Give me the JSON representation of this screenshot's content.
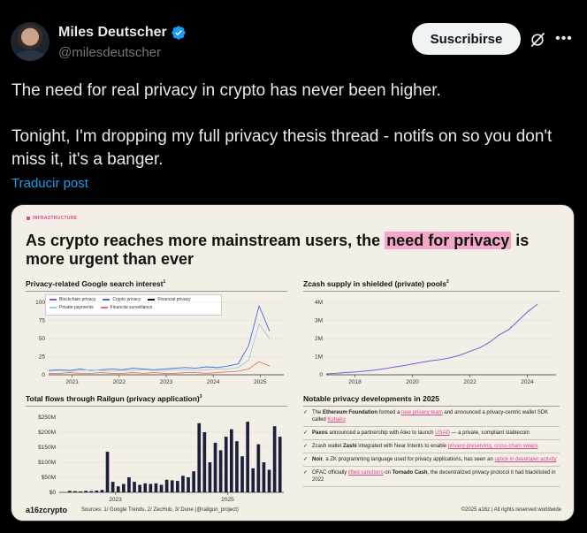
{
  "header": {
    "name": "Miles Deutscher",
    "handle": "@milesdeutscher",
    "subscribe_label": "Suscribirse"
  },
  "tweet": {
    "text": "The need for real privacy in crypto has never been higher.\n\nTonight, I'm dropping my full privacy thesis thread - notifs on so you don't miss it, it's a banger.",
    "translate_label": "Traducir post"
  },
  "colors": {
    "accent": "#1d9bf0",
    "pink": "#d64a8b",
    "highlight": "#f4a7c8"
  },
  "infographic": {
    "tag": "INFRASTRUCTURE",
    "headline_pre": "As crypto reaches more mainstream users, the ",
    "headline_hl": "need for privacy",
    "headline_post": " is more urgent than ever",
    "panel1_title": "Privacy-related Google search interest",
    "panel1_sup": "1",
    "panel2_title": "Zcash supply in shielded (private) pools",
    "panel2_sup": "2",
    "panel3_title": "Total flows through Railgun (privacy application)",
    "panel3_sup": "3",
    "panel4_title": "Notable privacy developments in 2025",
    "legend": [
      "Blockchain privacy",
      "Crypto privacy",
      "Financial privacy",
      "Private payments",
      "Financial surveillance"
    ],
    "notes": [
      {
        "pre": "The ",
        "bold": "Ethereum Foundation",
        "mid": " formed a ",
        "link": "new privacy team",
        "post": " and announced a privacy-centric wallet SDK called ",
        "link2": "Kohaku",
        "end": ""
      },
      {
        "pre": "",
        "bold": "Paxos",
        "mid": " announced a partnership with Aleo to launch ",
        "link": "USAD",
        "post": " — a private, compliant stablecoin",
        "link2": "",
        "end": ""
      },
      {
        "pre": "Zcash wallet ",
        "bold": "Zashi",
        "mid": " integrated with Near Intents to enable ",
        "link": "privacy-preserving, cross-chain swaps",
        "post": "",
        "link2": "",
        "end": ""
      },
      {
        "pre": "",
        "bold": "Noir",
        "mid": ", a ZK programming language used for privacy applications, has seen an ",
        "link": "uptick in developer activity",
        "post": "",
        "link2": "",
        "end": ""
      },
      {
        "pre": "OFAC officially ",
        "bold": "",
        "mid": "",
        "link": "lifted sanctions",
        "post": " on ",
        "link2": "",
        "end": "Tornado Cash",
        "tail": ", the decentralized privacy protocol it had blacklisted in 2022"
      }
    ],
    "logo": "a16zcrypto",
    "sources": "Sources: 1/ Google Trends, 2/ ZecHub, 3/ Dune (@railgun_project)",
    "copyright": "©2025 a16z | All rights reserved worldwide"
  },
  "chart_data": [
    {
      "type": "line",
      "title": "Privacy-related Google search interest",
      "x_ticks": [
        "2021",
        "2022",
        "2023",
        "2024",
        "2025"
      ],
      "y_ticks": [
        "0",
        "25",
        "50",
        "75",
        "100"
      ],
      "ylim": [
        0,
        100
      ],
      "series": [
        {
          "name": "Blockchain privacy",
          "color": "#7b5cd6"
        },
        {
          "name": "Crypto privacy",
          "color": "#3b6fd4",
          "values": [
            6,
            7,
            6,
            8,
            6,
            7,
            8,
            7,
            9,
            8,
            7,
            8,
            9,
            10,
            9,
            11,
            10,
            12,
            15,
            40,
            95,
            60
          ]
        },
        {
          "name": "Financial privacy",
          "color": "#111111"
        },
        {
          "name": "Private payments",
          "color": "#9ecae1",
          "values": [
            5,
            6,
            5,
            6,
            7,
            6,
            5,
            6,
            6,
            7,
            6,
            6,
            7,
            7,
            6,
            7,
            8,
            8,
            10,
            20,
            70,
            50
          ]
        },
        {
          "name": "Financial surveillance",
          "color": "#e07a5f",
          "values": [
            2,
            2,
            3,
            2,
            2,
            3,
            2,
            2,
            3,
            2,
            3,
            2,
            2,
            3,
            3,
            2,
            3,
            4,
            5,
            8,
            18,
            12
          ]
        }
      ]
    },
    {
      "type": "line",
      "title": "Zcash supply in shielded (private) pools",
      "x_ticks": [
        "2018",
        "2020",
        "2022",
        "2024"
      ],
      "y_ticks": [
        "0",
        "1M",
        "2M",
        "3M",
        "4M"
      ],
      "ylim": [
        0,
        4000000
      ],
      "values": [
        50000,
        80000,
        120000,
        150000,
        200000,
        260000,
        330000,
        420000,
        500000,
        600000,
        700000,
        780000,
        850000,
        950000,
        1100000,
        1300000,
        1500000,
        1800000,
        2200000,
        2500000,
        3000000,
        3500000,
        3900000
      ],
      "color": "#7b5cd6"
    },
    {
      "type": "bar",
      "title": "Total flows through Railgun (privacy application)",
      "x_ticks": [
        "2023",
        "2025"
      ],
      "y_ticks": [
        "$0",
        "$50M",
        "$100M",
        "$150M",
        "$200M",
        "$250M"
      ],
      "ylim": [
        0,
        250
      ],
      "values": [
        5,
        4,
        3,
        5,
        4,
        6,
        8,
        135,
        35,
        20,
        28,
        50,
        35,
        25,
        30,
        28,
        30,
        25,
        42,
        40,
        38,
        55,
        50,
        70,
        230,
        200,
        100,
        165,
        140,
        185,
        210,
        170,
        120,
        235,
        80,
        160,
        100,
        75,
        220,
        185
      ]
    }
  ]
}
